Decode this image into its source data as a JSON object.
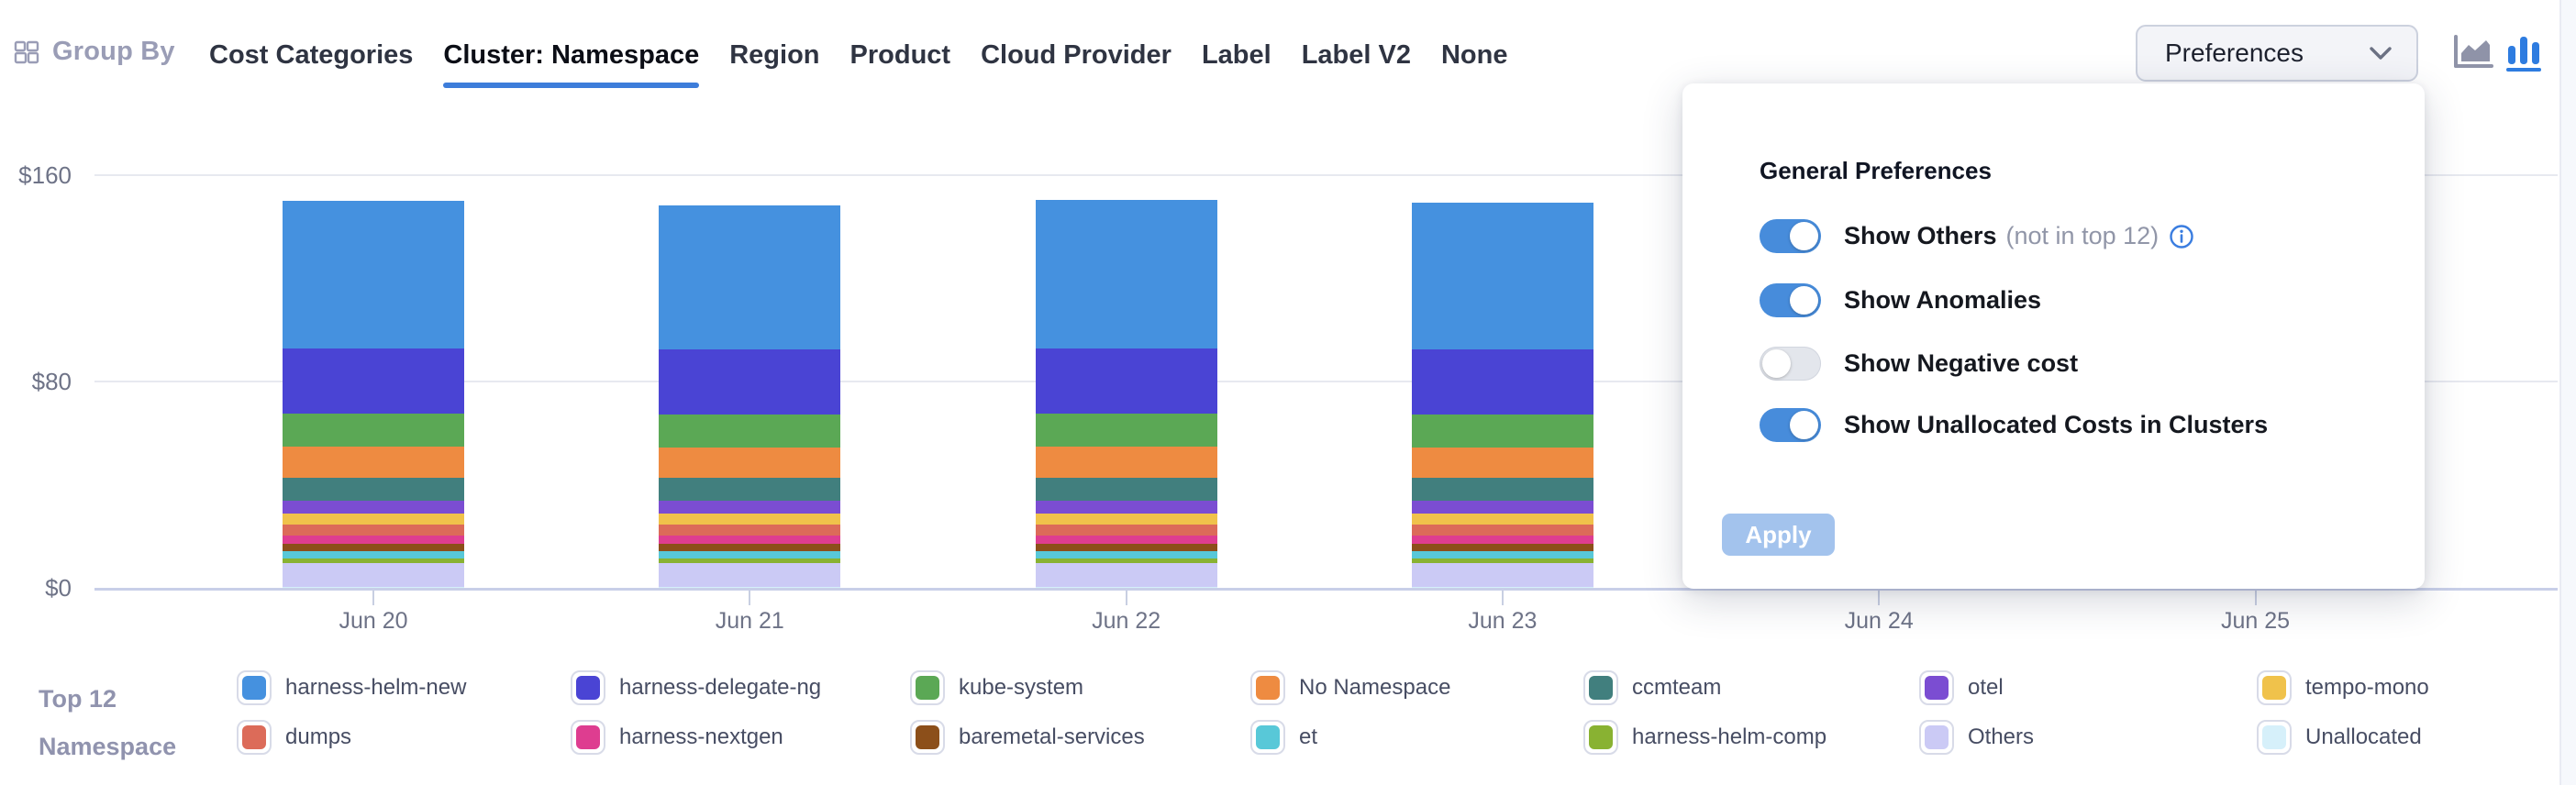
{
  "header": {
    "group_by_label": "Group By",
    "tabs": [
      {
        "label": "Cost Categories",
        "active": false
      },
      {
        "label": "Cluster: Namespace",
        "active": true
      },
      {
        "label": "Region",
        "active": false
      },
      {
        "label": "Product",
        "active": false
      },
      {
        "label": "Cloud Provider",
        "active": false
      },
      {
        "label": "Label",
        "active": false
      },
      {
        "label": "Label V2",
        "active": false
      },
      {
        "label": "None",
        "active": false
      }
    ],
    "preferences_label": "Preferences",
    "chart_type": {
      "selected": "column",
      "options": [
        "area",
        "column"
      ]
    }
  },
  "preferences_panel": {
    "title": "General Preferences",
    "toggles": [
      {
        "label": "Show Others",
        "suffix": "(not in top 12)",
        "has_info": true,
        "state": "on"
      },
      {
        "label": "Show Anomalies",
        "suffix": "",
        "has_info": false,
        "state": "on"
      },
      {
        "label": "Show Negative cost",
        "suffix": "",
        "has_info": false,
        "state": "off"
      },
      {
        "label": "Show Unallocated Costs in Clusters",
        "suffix": "",
        "has_info": false,
        "state": "on"
      }
    ],
    "apply_label": "Apply"
  },
  "chart_data": {
    "type": "bar",
    "stacked": true,
    "categories": [
      "Jun 20",
      "Jun 21",
      "Jun 22",
      "Jun 23",
      "Jun 24",
      "Jun 25"
    ],
    "ytick_values": [
      0,
      80,
      160
    ],
    "ytick_labels": [
      "$0",
      "$80",
      "$160"
    ],
    "ylim": [
      0,
      160
    ],
    "grid": "horizontal",
    "legend_position": "bottom",
    "series": [
      {
        "name": "harness-helm-new",
        "color": "#4591df",
        "values": [
          57.0,
          56.0,
          57.5,
          56.8,
          0,
          0
        ]
      },
      {
        "name": "harness-delegate-ng",
        "color": "#4a44d4",
        "values": [
          25.4,
          25.0,
          25.4,
          25.2,
          0,
          0
        ]
      },
      {
        "name": "kube-system",
        "color": "#5ba855",
        "values": [
          12.9,
          12.8,
          12.9,
          12.8,
          0,
          0
        ]
      },
      {
        "name": "No Namespace",
        "color": "#ee8b41",
        "values": [
          11.9,
          11.8,
          11.9,
          11.8,
          0,
          0
        ]
      },
      {
        "name": "ccmteam",
        "color": "#417f7e",
        "values": [
          8.9,
          8.9,
          8.9,
          8.9,
          0,
          0
        ]
      },
      {
        "name": "otel",
        "color": "#7b4dd2",
        "values": [
          5.1,
          5.1,
          5.1,
          5.1,
          0,
          0
        ]
      },
      {
        "name": "tempo-mono",
        "color": "#f0c24b",
        "values": [
          4.0,
          4.0,
          4.0,
          4.0,
          0,
          0
        ]
      },
      {
        "name": "dumps",
        "color": "#dc6b59",
        "values": [
          4.3,
          4.3,
          4.3,
          4.3,
          0,
          0
        ]
      },
      {
        "name": "harness-nextgen",
        "color": "#de3d90",
        "values": [
          3.5,
          3.5,
          3.5,
          3.5,
          0,
          0
        ]
      },
      {
        "name": "baremetal-services",
        "color": "#8c4f1a",
        "values": [
          2.8,
          2.8,
          2.8,
          2.8,
          0,
          0
        ]
      },
      {
        "name": "et",
        "color": "#58c8d8",
        "values": [
          2.7,
          2.7,
          2.7,
          2.7,
          0,
          0
        ]
      },
      {
        "name": "harness-helm-comp",
        "color": "#89b232",
        "values": [
          1.8,
          1.8,
          1.8,
          1.8,
          0,
          0
        ]
      },
      {
        "name": "Others",
        "color": "#cbcaf5",
        "values": [
          9.2,
          9.2,
          9.2,
          9.2,
          0,
          0
        ]
      },
      {
        "name": "Unallocated",
        "color": "#d6f0fa",
        "values": [
          0.4,
          0.4,
          0.4,
          0.4,
          0,
          0
        ]
      }
    ]
  },
  "legend": {
    "group_label_line1": "Top 12",
    "group_label_line2": "Namespace"
  },
  "colors": {
    "accent_blue": "#3d7dda",
    "toggle_on": "#478cdb",
    "apply_disabled": "#a3c3ed",
    "gridline": "#e7e9f0",
    "axis_line": "#c8cfe8",
    "muted_text": "#6e7387"
  }
}
